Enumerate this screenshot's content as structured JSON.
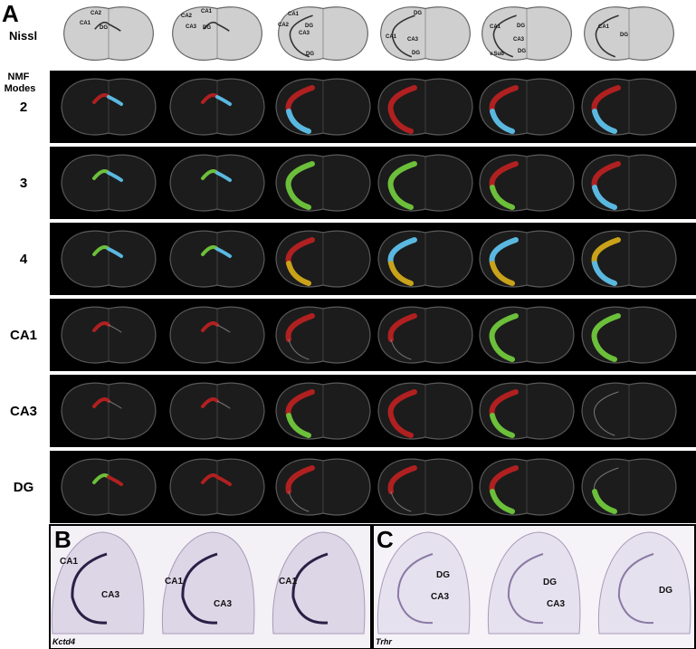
{
  "panel_a": {
    "label": "A",
    "nissl_label": "Nissl",
    "nmf_label": "NMF Modes",
    "nissl_sections": [
      {
        "labels": [
          "CA2",
          "CA1",
          "DG"
        ]
      },
      {
        "labels": [
          "CA1",
          "CA2",
          "CA3",
          "DG"
        ]
      },
      {
        "labels": [
          "CA1",
          "CA2",
          "DG",
          "CA3",
          "DG"
        ]
      },
      {
        "labels": [
          "DG",
          "CA1",
          "CA3",
          "DG"
        ]
      },
      {
        "labels": [
          "CA1",
          "DG",
          "CA3",
          "DG",
          "v.Sub"
        ]
      },
      {
        "labels": [
          "CA1",
          "DG"
        ]
      }
    ],
    "rows": [
      "2",
      "3",
      "4",
      "CA1",
      "CA3",
      "DG"
    ]
  },
  "panel_b": {
    "label": "B",
    "gene": "Kctd4",
    "sections": [
      [
        "CA1",
        "CA3"
      ],
      [
        "CA1",
        "CA3"
      ],
      [
        "CA1"
      ]
    ]
  },
  "panel_c": {
    "label": "C",
    "gene": "Trhr",
    "sections": [
      [
        "DG",
        "CA3"
      ],
      [
        "DG",
        "CA3"
      ],
      [
        "DG"
      ]
    ]
  }
}
